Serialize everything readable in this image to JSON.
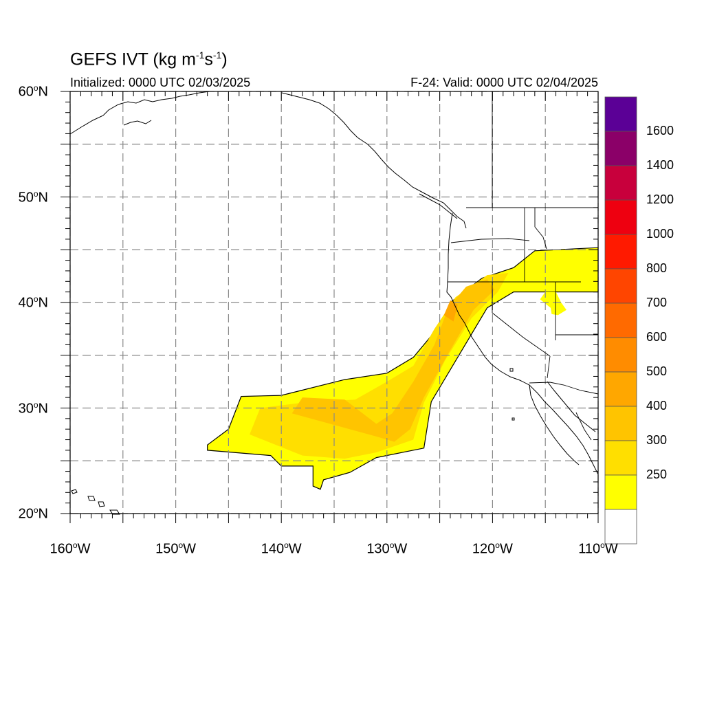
{
  "header": {
    "title_main": "GEFS IVT (kg m",
    "title_exp1": "-1",
    "title_mid": "s",
    "title_exp2": "-1",
    "title_end": ")",
    "initialized": "Initialized: 0000 UTC 02/03/2025",
    "valid": "F-24: Valid: 0000 UTC 02/04/2025"
  },
  "axes": {
    "lat_labels": [
      {
        "deg": "60",
        "hemi": "N"
      },
      {
        "deg": "50",
        "hemi": "N"
      },
      {
        "deg": "40",
        "hemi": "N"
      },
      {
        "deg": "30",
        "hemi": "N"
      },
      {
        "deg": "20",
        "hemi": "N"
      }
    ],
    "lon_labels": [
      {
        "deg": "160",
        "hemi": "W"
      },
      {
        "deg": "150",
        "hemi": "W"
      },
      {
        "deg": "140",
        "hemi": "W"
      },
      {
        "deg": "130",
        "hemi": "W"
      },
      {
        "deg": "120",
        "hemi": "W"
      },
      {
        "deg": "110",
        "hemi": "W"
      }
    ],
    "lat_range": [
      20,
      60
    ],
    "lon_range": [
      -160,
      -110
    ]
  },
  "colorbar": {
    "labels": [
      "1600",
      "1400",
      "1200",
      "1000",
      "800",
      "700",
      "600",
      "500",
      "400",
      "300",
      "250"
    ],
    "colors": [
      "#ffffff",
      "#ffff00",
      "#ffdf00",
      "#ffc400",
      "#ffa700",
      "#ff8c00",
      "#ff6a00",
      "#ff4500",
      "#ff1a00",
      "#ee0010",
      "#c8003c",
      "#8b0068",
      "#5b0096"
    ]
  },
  "chart_data": {
    "type": "heatmap",
    "title": "GEFS IVT (kg m-1s-1)",
    "variable": "IVT",
    "units": "kg m-1 s-1",
    "lat_range": [
      20,
      60
    ],
    "lon_range": [
      -160,
      -110
    ],
    "thresholds": [
      250,
      300,
      400,
      500,
      600,
      700,
      800,
      1000,
      1200,
      1400,
      1600
    ],
    "regions": [
      {
        "level": 250,
        "polygon": [
          [
            -147,
            26.5
          ],
          [
            -145,
            28
          ],
          [
            -143.8,
            31.1
          ],
          [
            -140,
            31.2
          ],
          [
            -134,
            32.7
          ],
          [
            -130,
            33.3
          ],
          [
            -127.5,
            34.8
          ],
          [
            -125,
            37.8
          ],
          [
            -124,
            40
          ],
          [
            -121,
            42.3
          ],
          [
            -118,
            43.3
          ],
          [
            -116,
            44.9
          ],
          [
            -110,
            45.2
          ],
          [
            -110,
            41
          ],
          [
            -113,
            41
          ],
          [
            -118,
            41
          ],
          [
            -120.5,
            39.5
          ],
          [
            -123,
            35.3
          ],
          [
            -125.8,
            30.6
          ],
          [
            -126.5,
            26.2
          ],
          [
            -131,
            25.3
          ],
          [
            -133.5,
            23.9
          ],
          [
            -136,
            23.2
          ],
          [
            -136.3,
            22.3
          ],
          [
            -137,
            22.6
          ],
          [
            -137,
            24.5
          ],
          [
            -140,
            24.5
          ],
          [
            -141,
            25.5
          ],
          [
            -147,
            26
          ]
        ]
      },
      {
        "level": 300,
        "polygon": [
          [
            -143,
            27.5
          ],
          [
            -142,
            30
          ],
          [
            -138,
            30.5
          ],
          [
            -133,
            30.8
          ],
          [
            -130,
            32.5
          ],
          [
            -127.5,
            34
          ],
          [
            -125.5,
            37.5
          ],
          [
            -123.5,
            40.5
          ],
          [
            -120.5,
            42.6
          ],
          [
            -118.5,
            42.8
          ],
          [
            -119.5,
            41
          ],
          [
            -122,
            38.5
          ],
          [
            -124.5,
            34.5
          ],
          [
            -126.5,
            30.5
          ],
          [
            -127.5,
            27
          ],
          [
            -131,
            25.8
          ],
          [
            -134,
            25.2
          ],
          [
            -138,
            25.5
          ]
        ]
      },
      {
        "level": 400,
        "polygon": [
          [
            -139,
            29.5
          ],
          [
            -138,
            31
          ],
          [
            -134,
            30.8
          ],
          [
            -131,
            28.5
          ],
          [
            -129.5,
            29.5
          ],
          [
            -127.5,
            32.5
          ],
          [
            -125.5,
            36
          ],
          [
            -124.2,
            39.5
          ],
          [
            -122.5,
            41.5
          ],
          [
            -120.5,
            42.2
          ],
          [
            -119.8,
            41.2
          ],
          [
            -121.8,
            39.3
          ],
          [
            -124,
            35.5
          ],
          [
            -126.5,
            31
          ],
          [
            -127.8,
            28
          ],
          [
            -129.3,
            26.8
          ],
          [
            -131,
            27.3
          ]
        ]
      },
      {
        "level": 500,
        "polygon": [
          [
            -124.6,
            38.8
          ],
          [
            -124,
            40.2
          ],
          [
            -123.3,
            39.8
          ],
          [
            -123.7,
            38.2
          ]
        ]
      },
      {
        "level": 250,
        "polygon": [
          [
            -114.5,
            39.5
          ],
          [
            -115.5,
            40.3
          ],
          [
            -115,
            41
          ],
          [
            -114,
            41
          ],
          [
            -113.5,
            40
          ],
          [
            -113,
            39.3
          ],
          [
            -113.8,
            38.8
          ],
          [
            -114.4,
            38.9
          ]
        ]
      }
    ],
    "grid": true,
    "grid_lines": "dashed",
    "legend_placement": "right"
  }
}
